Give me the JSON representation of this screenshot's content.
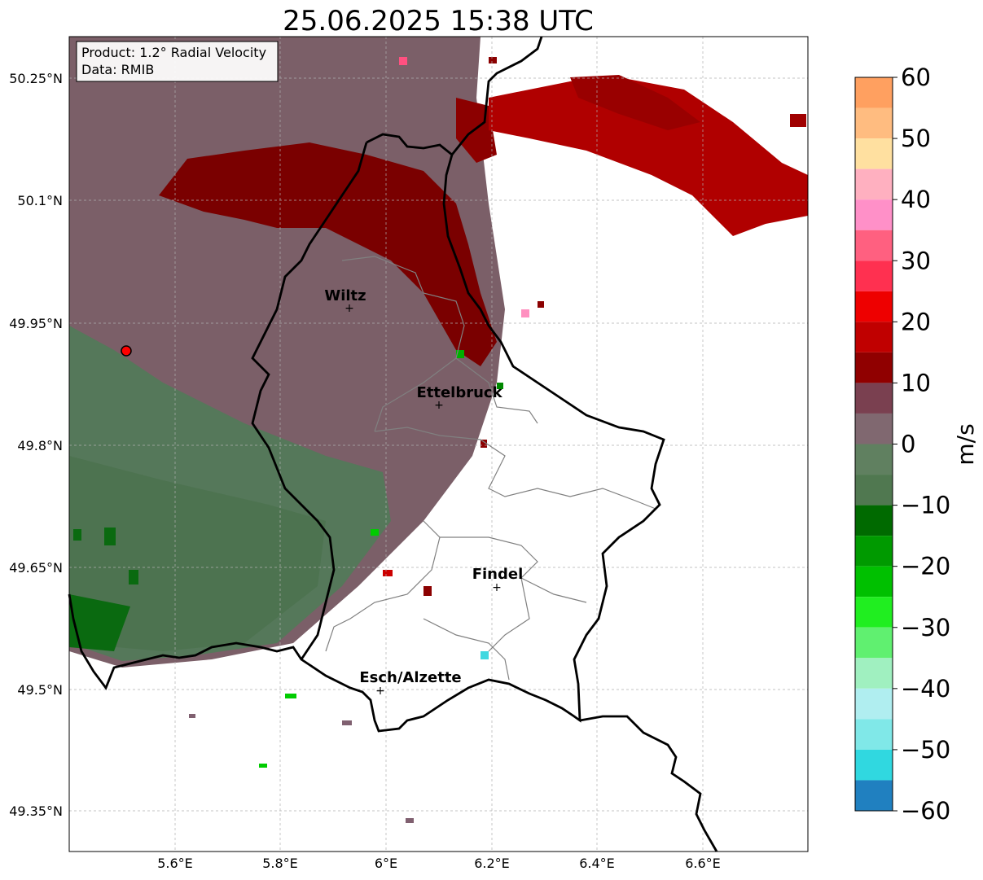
{
  "title": "25.06.2025 15:38 UTC",
  "info_box": {
    "product_line": "Product: 1.2° Radial Velocity",
    "data_line": "Data: RMIB"
  },
  "axes": {
    "lon_ticks": [
      "5.6°E",
      "5.8°E",
      "6°E",
      "6.2°E",
      "6.4°E",
      "6.6°E"
    ],
    "lat_ticks": [
      "50.25°N",
      "50.1°N",
      "49.95°N",
      "49.8°N",
      "49.65°N",
      "49.5°N",
      "49.35°N"
    ]
  },
  "cities": [
    {
      "name": "Wiltz"
    },
    {
      "name": "Ettelbruck"
    },
    {
      "name": "Findel"
    },
    {
      "name": "Esch/Alzette"
    }
  ],
  "colorbar": {
    "unit": "m/s",
    "min": -60,
    "max": 60,
    "tick_labels": [
      "60",
      "50",
      "40",
      "30",
      "20",
      "10",
      "0",
      "−10",
      "−20",
      "−30",
      "−40",
      "−50",
      "−60"
    ]
  },
  "colors": {
    "approaching_strong": "#2080c0",
    "approaching": "#00c000",
    "near_zero_neg": "#5a7a5a",
    "near_zero_pos": "#7a5a66",
    "receding": "#800000",
    "receding_strong": "#ff9040",
    "radar_site": "#ff0000"
  }
}
